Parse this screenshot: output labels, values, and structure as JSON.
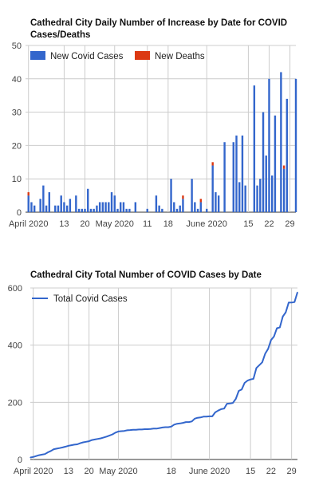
{
  "charts": [
    {
      "id": "daily",
      "type": "bar",
      "title": "Cathedral City Daily Number of Increase by Date for COVID Cases/Deaths",
      "title_lines": [
        "Cathedral City Daily Number of Increase by Date for COVID",
        "Cases/Deaths"
      ],
      "legend": {
        "placement": "top-left"
      },
      "xlabel": "",
      "ylabel": "",
      "ylim": [
        0,
        50
      ],
      "yticks": [
        0,
        10,
        20,
        30,
        40,
        50
      ],
      "xlim": [
        0,
        91
      ],
      "xticks": [
        {
          "day": 1,
          "label": "April 2020"
        },
        {
          "day": 13,
          "label": "13"
        },
        {
          "day": 20,
          "label": "20"
        },
        {
          "day": 30,
          "label": "May 2020"
        },
        {
          "day": 41,
          "label": "11"
        },
        {
          "day": 48,
          "label": "18"
        },
        {
          "day": 61,
          "label": "June 2020"
        },
        {
          "day": 75,
          "label": "15"
        },
        {
          "day": 82,
          "label": "22"
        },
        {
          "day": 89,
          "label": "29"
        }
      ],
      "series": [
        {
          "name": "New Covid Cases",
          "color": "#3366cc",
          "points": [
            [
              1,
              5
            ],
            [
              2,
              3
            ],
            [
              3,
              2
            ],
            [
              5,
              4
            ],
            [
              6,
              8
            ],
            [
              7,
              2
            ],
            [
              8,
              6
            ],
            [
              10,
              2
            ],
            [
              11,
              2
            ],
            [
              12,
              5
            ],
            [
              13,
              3
            ],
            [
              14,
              2
            ],
            [
              15,
              4
            ],
            [
              17,
              5
            ],
            [
              18,
              1
            ],
            [
              19,
              1
            ],
            [
              20,
              1
            ],
            [
              21,
              7
            ],
            [
              22,
              1
            ],
            [
              23,
              1
            ],
            [
              24,
              2
            ],
            [
              25,
              3
            ],
            [
              26,
              3
            ],
            [
              27,
              3
            ],
            [
              28,
              3
            ],
            [
              29,
              6
            ],
            [
              30,
              5
            ],
            [
              31,
              1
            ],
            [
              32,
              3
            ],
            [
              33,
              3
            ],
            [
              34,
              1
            ],
            [
              35,
              1
            ],
            [
              37,
              3
            ],
            [
              41,
              1
            ],
            [
              44,
              5
            ],
            [
              45,
              2
            ],
            [
              46,
              1
            ],
            [
              49,
              10
            ],
            [
              50,
              3
            ],
            [
              51,
              1
            ],
            [
              52,
              2
            ],
            [
              53,
              4
            ],
            [
              56,
              10
            ],
            [
              57,
              3
            ],
            [
              58,
              1
            ],
            [
              59,
              3
            ],
            [
              61,
              1
            ],
            [
              63,
              14
            ],
            [
              64,
              6
            ],
            [
              65,
              5
            ],
            [
              67,
              21
            ],
            [
              70,
              21
            ],
            [
              71,
              23
            ],
            [
              72,
              9
            ],
            [
              73,
              23
            ],
            [
              74,
              8
            ],
            [
              77,
              38
            ],
            [
              78,
              8
            ],
            [
              79,
              10
            ],
            [
              80,
              30
            ],
            [
              81,
              17
            ],
            [
              82,
              40
            ],
            [
              83,
              11
            ],
            [
              84,
              29
            ],
            [
              86,
              42
            ],
            [
              87,
              13
            ],
            [
              88,
              34
            ],
            [
              91,
              40
            ]
          ]
        },
        {
          "name": "New Deaths",
          "color": "#dc3912",
          "points": [
            [
              1,
              1
            ],
            [
              53,
              1
            ],
            [
              59,
              1
            ],
            [
              63,
              1
            ],
            [
              87,
              1
            ]
          ]
        }
      ]
    },
    {
      "id": "total",
      "type": "line",
      "title": "Cathedral City Total Number of COVID Cases by Date",
      "legend": {
        "placement": "top-left"
      },
      "xlabel": "",
      "ylabel": "",
      "ylim": [
        0,
        600
      ],
      "yticks": [
        0,
        200,
        400,
        600
      ],
      "xlim": [
        0,
        91
      ],
      "xticks": [
        {
          "day": 1,
          "label": "April 2020"
        },
        {
          "day": 13,
          "label": "13"
        },
        {
          "day": 20,
          "label": "20"
        },
        {
          "day": 30,
          "label": "May 2020"
        },
        {
          "day": 48,
          "label": "18"
        },
        {
          "day": 61,
          "label": "June 2020"
        },
        {
          "day": 75,
          "label": "15"
        },
        {
          "day": 82,
          "label": "22"
        },
        {
          "day": 89,
          "label": "29"
        }
      ],
      "series": [
        {
          "name": "Total Covid Cases",
          "color": "#3366cc",
          "points": [
            [
              0,
              7
            ],
            [
              1,
              9
            ],
            [
              2,
              12
            ],
            [
              3,
              15
            ],
            [
              4,
              17
            ],
            [
              5,
              19
            ],
            [
              6,
              25
            ],
            [
              7,
              30
            ],
            [
              8,
              36
            ],
            [
              9,
              38
            ],
            [
              10,
              40
            ],
            [
              11,
              42
            ],
            [
              12,
              45
            ],
            [
              13,
              48
            ],
            [
              14,
              50
            ],
            [
              15,
              52
            ],
            [
              16,
              53
            ],
            [
              17,
              57
            ],
            [
              18,
              60
            ],
            [
              19,
              62
            ],
            [
              20,
              64
            ],
            [
              21,
              68
            ],
            [
              22,
              70
            ],
            [
              23,
              72
            ],
            [
              24,
              74
            ],
            [
              25,
              77
            ],
            [
              26,
              80
            ],
            [
              27,
              84
            ],
            [
              28,
              88
            ],
            [
              29,
              94
            ],
            [
              30,
              98
            ],
            [
              31,
              99
            ],
            [
              32,
              100
            ],
            [
              33,
              102
            ],
            [
              34,
              103
            ],
            [
              35,
              104
            ],
            [
              36,
              104
            ],
            [
              37,
              105
            ],
            [
              38,
              105
            ],
            [
              39,
              106
            ],
            [
              40,
              106
            ],
            [
              41,
              107
            ],
            [
              42,
              108
            ],
            [
              43,
              108
            ],
            [
              44,
              110
            ],
            [
              45,
              112
            ],
            [
              46,
              113
            ],
            [
              47,
              113
            ],
            [
              48,
              115
            ],
            [
              49,
              122
            ],
            [
              50,
              125
            ],
            [
              51,
              126
            ],
            [
              52,
              128
            ],
            [
              53,
              131
            ],
            [
              54,
              131
            ],
            [
              55,
              133
            ],
            [
              56,
              143
            ],
            [
              57,
              146
            ],
            [
              58,
              147
            ],
            [
              59,
              150
            ],
            [
              60,
              150
            ],
            [
              61,
              151
            ],
            [
              62,
              151
            ],
            [
              63,
              165
            ],
            [
              64,
              171
            ],
            [
              65,
              176
            ],
            [
              66,
              178
            ],
            [
              67,
              195
            ],
            [
              68,
              196
            ],
            [
              69,
              198
            ],
            [
              70,
              212
            ],
            [
              71,
              240
            ],
            [
              72,
              245
            ],
            [
              73,
              268
            ],
            [
              74,
              276
            ],
            [
              75,
              280
            ],
            [
              76,
              282
            ],
            [
              77,
              320
            ],
            [
              78,
              330
            ],
            [
              79,
              340
            ],
            [
              80,
              370
            ],
            [
              81,
              387
            ],
            [
              82,
              418
            ],
            [
              83,
              430
            ],
            [
              84,
              459
            ],
            [
              85,
              462
            ],
            [
              86,
              500
            ],
            [
              87,
              515
            ],
            [
              88,
              549
            ],
            [
              89,
              549
            ],
            [
              90,
              551
            ],
            [
              91,
              585
            ]
          ]
        }
      ]
    }
  ]
}
